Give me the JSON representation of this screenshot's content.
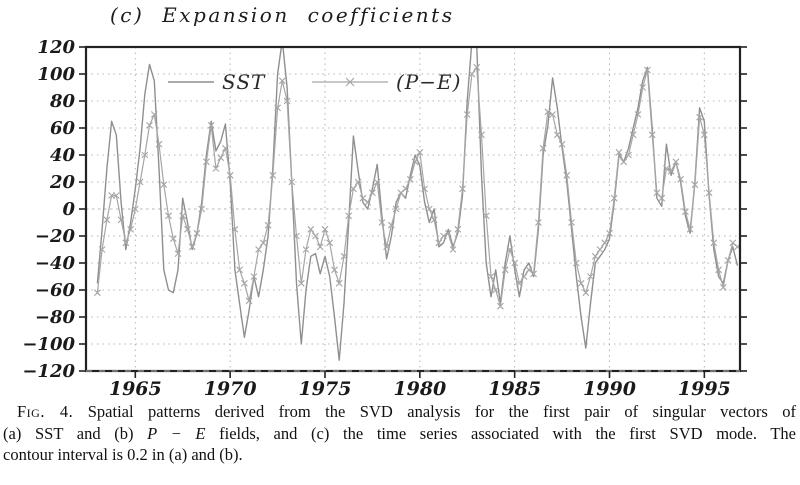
{
  "title": "(c) Expansion coefficients",
  "caption": {
    "fig_label": "Fig. 4.",
    "line1": " Spatial patterns derived from the SVD analysis for the first pair of singular vectors of",
    "line2_pre": "(a) SST and (b) ",
    "line2_math": "P − E",
    "line2_post": " fields, and (c) the time series associated with the first SVD mode. The",
    "line3": "contour interval is 0.2 in (a) and (b)."
  },
  "colors": {
    "sst_line": "#8f8f8f",
    "pe_line": "#a6a6a6",
    "grid": "#b4b4b4",
    "axis": "#222222",
    "text": "#1a1a1a"
  },
  "chart_data": {
    "type": "line",
    "title": "(c) Expansion coefficients",
    "xlim": [
      1962.4,
      1996.88
    ],
    "ylim": [
      -120,
      120
    ],
    "y_tick_step": 20,
    "x_ticks": [
      1965,
      1970,
      1975,
      1980,
      1985,
      1990,
      1995
    ],
    "grid": "dotted",
    "legend_position": "top-inside",
    "x_start": 1963.0,
    "x_step": 0.25,
    "series": [
      {
        "name": "SST",
        "line_style": "solid",
        "marker": "none",
        "color": "#8f8f8f",
        "values": [
          -55,
          -15,
          30,
          65,
          55,
          5,
          -30,
          -10,
          15,
          45,
          85,
          107,
          95,
          30,
          -45,
          -60,
          -62,
          -45,
          8,
          -10,
          -30,
          -18,
          5,
          40,
          65,
          43,
          50,
          63,
          20,
          -45,
          -70,
          -95,
          -75,
          -50,
          -65,
          -45,
          -20,
          30,
          100,
          125,
          90,
          20,
          -55,
          -100,
          -60,
          -35,
          -33,
          -48,
          -35,
          -50,
          -80,
          -112,
          -70,
          -10,
          54,
          28,
          5,
          0,
          15,
          33,
          -5,
          -37,
          -20,
          5,
          12,
          8,
          25,
          40,
          32,
          5,
          -10,
          0,
          -28,
          -25,
          -15,
          -28,
          -18,
          10,
          80,
          125,
          122,
          25,
          -40,
          -65,
          -45,
          -70,
          -40,
          -20,
          -45,
          -65,
          -45,
          -40,
          -50,
          -15,
          40,
          62,
          97,
          75,
          45,
          20,
          -15,
          -50,
          -80,
          -103,
          -70,
          -40,
          -35,
          -30,
          -22,
          5,
          40,
          35,
          45,
          60,
          75,
          95,
          105,
          60,
          8,
          2,
          48,
          25,
          35,
          20,
          -5,
          -18,
          20,
          75,
          65,
          10,
          -30,
          -50,
          -55,
          -38,
          -28,
          -42
        ]
      },
      {
        "name": "(P−E)",
        "line_style": "solid",
        "marker": "x",
        "color": "#a6a6a6",
        "values": [
          -62,
          -30,
          -8,
          10,
          10,
          -8,
          -25,
          -15,
          0,
          20,
          40,
          62,
          70,
          48,
          18,
          -5,
          -22,
          -33,
          -5,
          -15,
          -28,
          -18,
          0,
          35,
          62,
          30,
          38,
          45,
          25,
          -15,
          -45,
          -55,
          -68,
          -50,
          -30,
          -25,
          -12,
          25,
          75,
          95,
          80,
          20,
          -20,
          -55,
          -30,
          -15,
          -20,
          -28,
          -15,
          -25,
          -45,
          -55,
          -35,
          -5,
          15,
          20,
          8,
          5,
          12,
          20,
          -10,
          -28,
          -12,
          0,
          12,
          15,
          22,
          35,
          42,
          15,
          0,
          -8,
          -25,
          -20,
          -18,
          -30,
          -15,
          15,
          70,
          100,
          105,
          55,
          -5,
          -50,
          -60,
          -72,
          -45,
          -30,
          -40,
          -55,
          -50,
          -45,
          -48,
          -10,
          45,
          72,
          70,
          55,
          48,
          25,
          -10,
          -40,
          -55,
          -62,
          -50,
          -35,
          -30,
          -25,
          -18,
          8,
          42,
          35,
          40,
          55,
          70,
          90,
          103,
          55,
          12,
          8,
          30,
          28,
          35,
          22,
          -2,
          -15,
          18,
          68,
          55,
          12,
          -25,
          -45,
          -58,
          -38,
          -25,
          -28
        ]
      }
    ]
  }
}
